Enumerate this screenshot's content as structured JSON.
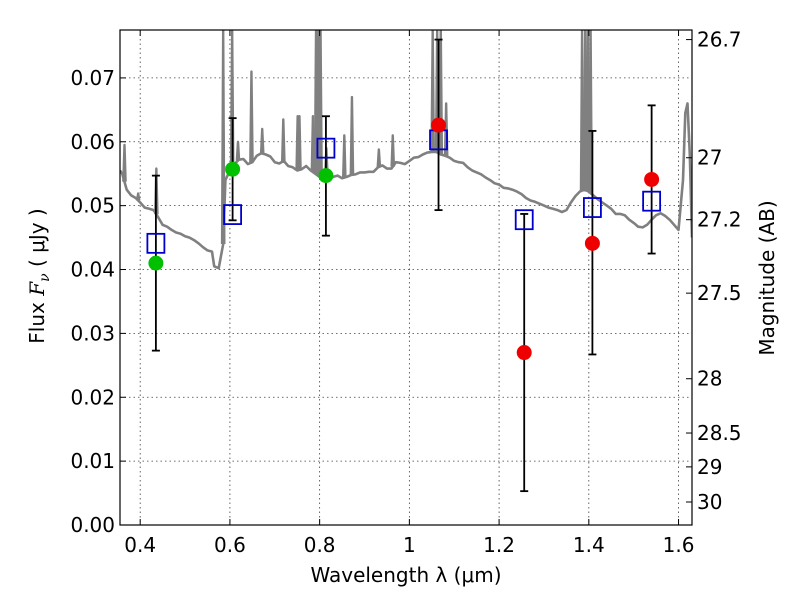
{
  "chart_data": {
    "type": "scatter",
    "xlabel": "Wavelength  λ (μm)",
    "ylabel_prefix": "Flux  ",
    "ylabel_symbol": "F",
    "ylabel_sub": "ν",
    "ylabel_suffix": "  ( μJy )",
    "y2label": "Magnitude (AB)",
    "xlim": [
      0.355,
      1.63
    ],
    "ylim": [
      0.0,
      0.0775
    ],
    "grid": true,
    "x_ticks": [
      {
        "value": 0.4,
        "label": "0.4"
      },
      {
        "value": 0.6,
        "label": "0.6"
      },
      {
        "value": 0.8,
        "label": "0.8"
      },
      {
        "value": 1.0,
        "label": "1"
      },
      {
        "value": 1.2,
        "label": "1.2"
      },
      {
        "value": 1.4,
        "label": "1.4"
      },
      {
        "value": 1.6,
        "label": "1.6"
      }
    ],
    "y_ticks": [
      {
        "value": 0.0,
        "label": "0.00"
      },
      {
        "value": 0.01,
        "label": "0.01"
      },
      {
        "value": 0.02,
        "label": "0.02"
      },
      {
        "value": 0.03,
        "label": "0.03"
      },
      {
        "value": 0.04,
        "label": "0.04"
      },
      {
        "value": 0.05,
        "label": "0.05"
      },
      {
        "value": 0.06,
        "label": "0.06"
      },
      {
        "value": 0.07,
        "label": "0.07"
      }
    ],
    "y2_ticks": [
      {
        "flux": 0.076,
        "label": "26.7"
      },
      {
        "flux": 0.0575,
        "label": "27"
      },
      {
        "flux": 0.0478,
        "label": "27.2"
      },
      {
        "flux": 0.0363,
        "label": "27.5"
      },
      {
        "flux": 0.0229,
        "label": "28"
      },
      {
        "flux": 0.0144,
        "label": "28.5"
      },
      {
        "flux": 0.0091,
        "label": "29"
      },
      {
        "flux": 0.0036,
        "label": "30"
      }
    ],
    "colors": {
      "model_line": "#808080",
      "model_squares": "#0000cc",
      "green_points": "#00c000",
      "red_points": "#ee0000",
      "error_bars": "#000000"
    },
    "series": [
      {
        "marker": "model-square",
        "points": [
          {
            "x": 0.435,
            "y": 0.0441
          },
          {
            "x": 0.606,
            "y": 0.0486
          },
          {
            "x": 0.814,
            "y": 0.059
          },
          {
            "x": 1.065,
            "y": 0.0603
          },
          {
            "x": 1.256,
            "y": 0.0478
          },
          {
            "x": 1.408,
            "y": 0.0497
          },
          {
            "x": 1.54,
            "y": 0.0507
          }
        ]
      },
      {
        "marker": "green-dot",
        "points": [
          {
            "x": 0.435,
            "y": 0.041,
            "yerr_low": 0.0273,
            "yerr_high": 0.0547
          },
          {
            "x": 0.606,
            "y": 0.0557,
            "yerr_low": 0.0477,
            "yerr_high": 0.0637
          },
          {
            "x": 0.814,
            "y": 0.0547,
            "yerr_low": 0.0453,
            "yerr_high": 0.064
          }
        ]
      },
      {
        "marker": "red-dot",
        "points": [
          {
            "x": 1.065,
            "y": 0.0626,
            "yerr_low": 0.0493,
            "yerr_high": 0.076
          },
          {
            "x": 1.256,
            "y": 0.027,
            "yerr_low": 0.0053,
            "yerr_high": 0.0487
          },
          {
            "x": 1.408,
            "y": 0.0441,
            "yerr_low": 0.0267,
            "yerr_high": 0.0617
          },
          {
            "x": 1.54,
            "y": 0.0541,
            "yerr_low": 0.0425,
            "yerr_high": 0.0657
          }
        ]
      }
    ],
    "model_spectrum": [
      [
        0.355,
        0.0555
      ],
      [
        0.36,
        0.055
      ],
      [
        0.37,
        0.0525
      ],
      [
        0.38,
        0.0516
      ],
      [
        0.39,
        0.0512
      ],
      [
        0.4,
        0.0505
      ],
      [
        0.41,
        0.0497
      ],
      [
        0.42,
        0.0495
      ],
      [
        0.43,
        0.0493
      ],
      [
        0.44,
        0.0482
      ],
      [
        0.45,
        0.047
      ],
      [
        0.46,
        0.0467
      ],
      [
        0.47,
        0.0462
      ],
      [
        0.48,
        0.0458
      ],
      [
        0.49,
        0.0456
      ],
      [
        0.5,
        0.0452
      ],
      [
        0.51,
        0.045
      ],
      [
        0.52,
        0.0446
      ],
      [
        0.53,
        0.0441
      ],
      [
        0.54,
        0.0435
      ],
      [
        0.55,
        0.043
      ],
      [
        0.56,
        0.0428
      ],
      [
        0.565,
        0.0405
      ],
      [
        0.575,
        0.0402
      ],
      [
        0.585,
        0.044
      ],
      [
        0.59,
        0.054
      ],
      [
        0.6,
        0.0555
      ],
      [
        0.61,
        0.0565
      ],
      [
        0.62,
        0.0572
      ],
      [
        0.63,
        0.0573
      ],
      [
        0.64,
        0.0565
      ],
      [
        0.65,
        0.0568
      ],
      [
        0.66,
        0.0578
      ],
      [
        0.67,
        0.0582
      ],
      [
        0.68,
        0.058
      ],
      [
        0.69,
        0.0577
      ],
      [
        0.7,
        0.0568
      ],
      [
        0.71,
        0.0566
      ],
      [
        0.72,
        0.057
      ],
      [
        0.73,
        0.0562
      ],
      [
        0.74,
        0.056
      ],
      [
        0.75,
        0.0555
      ],
      [
        0.76,
        0.0557
      ],
      [
        0.77,
        0.0562
      ],
      [
        0.78,
        0.0555
      ],
      [
        0.79,
        0.055
      ],
      [
        0.8,
        0.0545
      ],
      [
        0.81,
        0.055
      ],
      [
        0.82,
        0.0548
      ],
      [
        0.83,
        0.0545
      ],
      [
        0.84,
        0.0547
      ],
      [
        0.85,
        0.0543
      ],
      [
        0.86,
        0.0545
      ],
      [
        0.87,
        0.0548
      ],
      [
        0.88,
        0.0549
      ],
      [
        0.89,
        0.0552
      ],
      [
        0.9,
        0.0552
      ],
      [
        0.91,
        0.0553
      ],
      [
        0.92,
        0.0553
      ],
      [
        0.93,
        0.056
      ],
      [
        0.94,
        0.0563
      ],
      [
        0.95,
        0.0558
      ],
      [
        0.96,
        0.0558
      ],
      [
        0.97,
        0.0568
      ],
      [
        0.98,
        0.0567
      ],
      [
        0.99,
        0.0565
      ],
      [
        1.0,
        0.057
      ],
      [
        1.01,
        0.0575
      ],
      [
        1.02,
        0.0576
      ],
      [
        1.03,
        0.058
      ],
      [
        1.04,
        0.0583
      ],
      [
        1.05,
        0.0584
      ],
      [
        1.06,
        0.0584
      ],
      [
        1.07,
        0.058
      ],
      [
        1.08,
        0.0578
      ],
      [
        1.09,
        0.0575
      ],
      [
        1.1,
        0.057
      ],
      [
        1.11,
        0.0568
      ],
      [
        1.12,
        0.0567
      ],
      [
        1.13,
        0.056
      ],
      [
        1.14,
        0.0555
      ],
      [
        1.15,
        0.0552
      ],
      [
        1.16,
        0.0549
      ],
      [
        1.17,
        0.0544
      ],
      [
        1.18,
        0.054
      ],
      [
        1.19,
        0.0535
      ],
      [
        1.2,
        0.0533
      ],
      [
        1.21,
        0.0528
      ],
      [
        1.22,
        0.0527
      ],
      [
        1.23,
        0.0525
      ],
      [
        1.24,
        0.0522
      ],
      [
        1.25,
        0.0518
      ],
      [
        1.26,
        0.0512
      ],
      [
        1.27,
        0.0508
      ],
      [
        1.28,
        0.0506
      ],
      [
        1.29,
        0.0503
      ],
      [
        1.3,
        0.05
      ],
      [
        1.31,
        0.0497
      ],
      [
        1.32,
        0.0495
      ],
      [
        1.33,
        0.0493
      ],
      [
        1.34,
        0.049
      ],
      [
        1.35,
        0.0493
      ],
      [
        1.36,
        0.0505
      ],
      [
        1.37,
        0.0515
      ],
      [
        1.38,
        0.0522
      ],
      [
        1.39,
        0.0525
      ],
      [
        1.4,
        0.0522
      ],
      [
        1.41,
        0.0516
      ],
      [
        1.42,
        0.051
      ],
      [
        1.43,
        0.0505
      ],
      [
        1.44,
        0.05
      ],
      [
        1.45,
        0.0495
      ],
      [
        1.46,
        0.0487
      ],
      [
        1.47,
        0.0487
      ],
      [
        1.48,
        0.0485
      ],
      [
        1.49,
        0.0478
      ],
      [
        1.5,
        0.0473
      ],
      [
        1.51,
        0.0467
      ],
      [
        1.52,
        0.0466
      ],
      [
        1.53,
        0.047
      ],
      [
        1.54,
        0.0478
      ],
      [
        1.55,
        0.0485
      ],
      [
        1.56,
        0.0488
      ],
      [
        1.57,
        0.0484
      ],
      [
        1.58,
        0.0478
      ],
      [
        1.59,
        0.047
      ],
      [
        1.6,
        0.0462
      ],
      [
        1.61,
        0.054
      ],
      [
        1.615,
        0.0645
      ],
      [
        1.62,
        0.066
      ],
      [
        1.625,
        0.058
      ],
      [
        1.63,
        0.045
      ]
    ],
    "emission_lines": [
      {
        "x": 0.365,
        "y": 0.0595
      },
      {
        "x": 0.3955,
        "y": 0.0519
      },
      {
        "x": 0.436,
        "y": 0.0558
      },
      {
        "x": 0.585,
        "y": 0.0775
      },
      {
        "x": 0.605,
        "y": 0.0775
      },
      {
        "x": 0.618,
        "y": 0.06
      },
      {
        "x": 0.648,
        "y": 0.071
      },
      {
        "x": 0.672,
        "y": 0.062
      },
      {
        "x": 0.719,
        "y": 0.0635
      },
      {
        "x": 0.751,
        "y": 0.064
      },
      {
        "x": 0.755,
        "y": 0.064
      },
      {
        "x": 0.785,
        "y": 0.064
      },
      {
        "x": 0.792,
        "y": 0.0775
      },
      {
        "x": 0.797,
        "y": 0.0775
      },
      {
        "x": 0.802,
        "y": 0.0775
      },
      {
        "x": 0.815,
        "y": 0.059
      },
      {
        "x": 0.855,
        "y": 0.061
      },
      {
        "x": 0.872,
        "y": 0.067
      },
      {
        "x": 0.932,
        "y": 0.0588
      },
      {
        "x": 0.963,
        "y": 0.061
      },
      {
        "x": 1.052,
        "y": 0.0775
      },
      {
        "x": 1.062,
        "y": 0.0775
      },
      {
        "x": 1.07,
        "y": 0.0775
      },
      {
        "x": 1.082,
        "y": 0.066
      },
      {
        "x": 1.385,
        "y": 0.0775
      },
      {
        "x": 1.392,
        "y": 0.0775
      },
      {
        "x": 1.398,
        "y": 0.0775
      },
      {
        "x": 1.404,
        "y": 0.0775
      }
    ]
  }
}
